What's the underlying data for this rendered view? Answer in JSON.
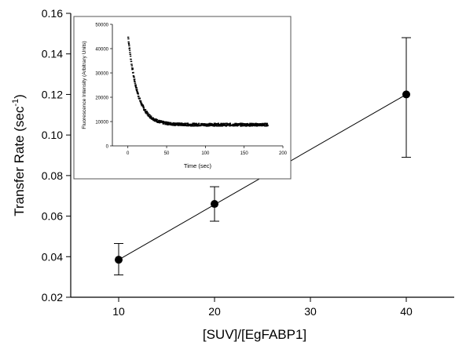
{
  "chart_data": [
    {
      "type": "scatter",
      "title": "",
      "xlabel": "[SUV]/[EgFABP1]",
      "ylabel": "Transfer Rate (sec",
      "ylabel_sup": "-1",
      "ylabel_close": ")",
      "xlim": [
        5,
        45
      ],
      "ylim": [
        0.02,
        0.16
      ],
      "xticks": [
        10,
        20,
        30,
        40
      ],
      "yticks": [
        "0.02",
        "0.04",
        "0.06",
        "0.08",
        "0.10",
        "0.12",
        "0.14",
        "0.16"
      ],
      "grid": false,
      "legend": "none",
      "series": [
        {
          "x": [
            10,
            20,
            40
          ],
          "y": [
            0.0385,
            0.066,
            0.12
          ],
          "err_low": [
            0.031,
            0.0575,
            0.089
          ],
          "err_high": [
            0.0465,
            0.0745,
            0.148
          ]
        }
      ],
      "fit_line": {
        "x": [
          10,
          40
        ],
        "y": [
          0.0385,
          0.12
        ]
      },
      "color": "#000000"
    },
    {
      "type": "scatter",
      "role": "inset",
      "title": "",
      "xlabel": "Time (sec)",
      "ylabel": "Fluorescence Intensity (Arbitrary Units)",
      "xlim": [
        -20,
        200
      ],
      "ylim": [
        0,
        50000
      ],
      "xticks": [
        0,
        50,
        100,
        150,
        200
      ],
      "yticks": [
        0,
        10000,
        20000,
        30000,
        40000,
        50000
      ],
      "grid": false,
      "legend": "none",
      "decay_model": {
        "a0": 36000,
        "tau": 12,
        "baseline": 8700,
        "t_start": 0,
        "t_end": 180
      },
      "color": "#000000"
    }
  ]
}
